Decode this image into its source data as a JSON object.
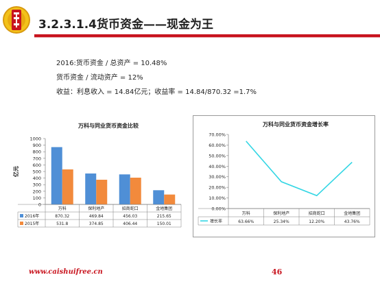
{
  "slide": {
    "title": "3.2.3.1.4货币资金——现金为王",
    "bullets": [
      "2016:货币资金 / 总资产 = 10.48%",
      "货币资金 / 流动资产 = 12%",
      "收益：利息收入 = 14.84亿元；收益率 = 14.84/870.32 =1.7%"
    ],
    "footer_url": "www.caishuifree.cn",
    "page_number": "46",
    "colors": {
      "accent": "#c8141e",
      "bar2016": "#4f8fd6",
      "bar2015": "#f28a3c",
      "line": "#33d6e4"
    }
  },
  "chart_data": [
    {
      "type": "bar",
      "title": "万科与同业货币资金比较",
      "ylabel": "亿元",
      "ylim": [
        0,
        1000
      ],
      "yticks": [
        "0",
        "100",
        "200",
        "300",
        "400",
        "500",
        "600",
        "700",
        "800",
        "900",
        "1000"
      ],
      "categories": [
        "万科",
        "保利地产",
        "招商蛇口",
        "金地集团"
      ],
      "series": [
        {
          "name": "2016年",
          "values": [
            870.32,
            469.84,
            456.03,
            215.65
          ],
          "labels": [
            "870.32",
            "469.84",
            "456.03",
            "215.65"
          ]
        },
        {
          "name": "2015年",
          "values": [
            531.8,
            374.85,
            406.44,
            150.01
          ],
          "labels": [
            "531.8",
            "374.85",
            "406.44",
            "150.01"
          ]
        }
      ]
    },
    {
      "type": "line",
      "title": "万科与同业货币资金增长率",
      "ylim": [
        0,
        70
      ],
      "yticks": [
        "0.00%",
        "10.00%",
        "20.00%",
        "30.00%",
        "40.00%",
        "50.00%",
        "60.00%",
        "70.00%"
      ],
      "categories": [
        "万科",
        "保利地产",
        "招商蛇口",
        "金地集团"
      ],
      "series": [
        {
          "name": "增长率",
          "values": [
            63.66,
            25.34,
            12.2,
            43.76
          ],
          "labels": [
            "63.66%",
            "25.34%",
            "12.20%",
            "43.76%"
          ]
        }
      ]
    }
  ]
}
